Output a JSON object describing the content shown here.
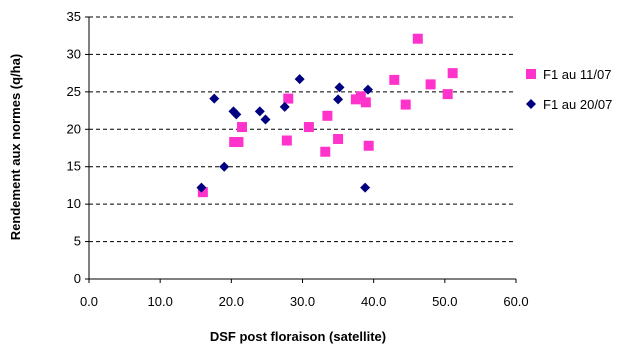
{
  "chart_data": {
    "type": "scatter",
    "title": "",
    "xlabel": "DSF post floraison (satellite)",
    "ylabel": "Rendement aux normes (q/ha)",
    "xlim": [
      0,
      60
    ],
    "ylim": [
      0,
      35
    ],
    "x_ticks": [
      "0.0",
      "10.0",
      "20.0",
      "30.0",
      "40.0",
      "50.0",
      "60.0"
    ],
    "y_ticks": [
      "0",
      "5",
      "10",
      "15",
      "20",
      "25",
      "30",
      "35"
    ],
    "grid": "horizontal-dashed",
    "legend_position": "right",
    "series": [
      {
        "name": "F1 au 11/07",
        "marker": "square",
        "color": "#ff33cc",
        "points": [
          [
            16.0,
            11.6
          ],
          [
            20.4,
            18.3
          ],
          [
            21.0,
            18.3
          ],
          [
            21.5,
            20.3
          ],
          [
            27.8,
            18.5
          ],
          [
            28.0,
            24.1
          ],
          [
            30.9,
            20.3
          ],
          [
            33.2,
            17.0
          ],
          [
            33.5,
            21.8
          ],
          [
            35.0,
            18.7
          ],
          [
            37.5,
            24.0
          ],
          [
            38.2,
            24.4
          ],
          [
            38.9,
            23.6
          ],
          [
            39.3,
            17.8
          ],
          [
            42.9,
            26.6
          ],
          [
            44.5,
            23.3
          ],
          [
            46.2,
            32.1
          ],
          [
            48.0,
            26.0
          ],
          [
            50.4,
            24.7
          ],
          [
            51.1,
            27.5
          ]
        ]
      },
      {
        "name": "F1 au 20/07",
        "marker": "diamond",
        "color": "#000080",
        "points": [
          [
            15.8,
            12.2
          ],
          [
            17.6,
            24.1
          ],
          [
            19.0,
            15.0
          ],
          [
            20.3,
            22.4
          ],
          [
            20.7,
            22.0
          ],
          [
            24.0,
            22.4
          ],
          [
            24.8,
            21.3
          ],
          [
            27.5,
            23.0
          ],
          [
            29.6,
            26.7
          ],
          [
            35.0,
            24.0
          ],
          [
            35.2,
            25.6
          ],
          [
            38.8,
            12.2
          ],
          [
            39.2,
            25.3
          ]
        ]
      }
    ]
  }
}
